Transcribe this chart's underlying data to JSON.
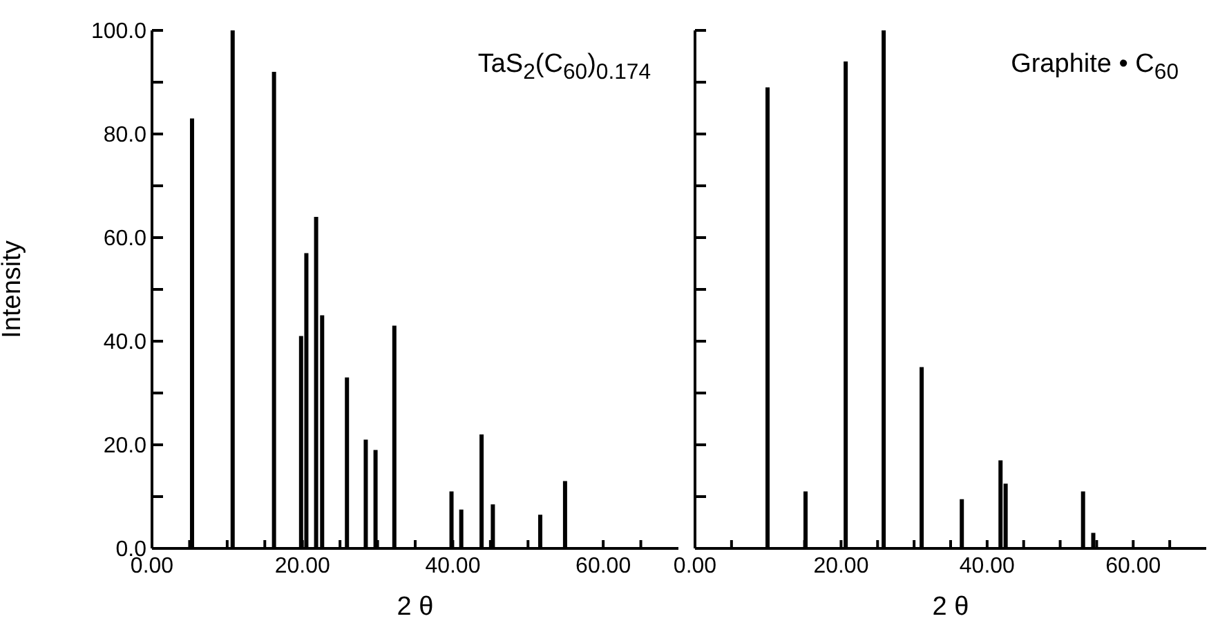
{
  "chart_data": [
    {
      "type": "bar",
      "annotations": [
        "TaS$_{2}$(C$_{60}$)$_{0.174}$"
      ],
      "xlabel": "2 θ",
      "ylabel": "Intensity",
      "color": "#000000",
      "x": [
        5.4,
        10.8,
        16.3,
        19.9,
        20.6,
        21.9,
        22.7,
        26.0,
        28.5,
        29.8,
        32.3,
        39.9,
        41.2,
        43.9,
        45.4,
        51.7,
        55.0
      ],
      "values": [
        83,
        100,
        92,
        41,
        57,
        64,
        45,
        33,
        21,
        19,
        43,
        11,
        7.5,
        22,
        8.5,
        6.5,
        13
      ],
      "xlim": [
        0,
        70
      ],
      "xticks": [
        {
          "value": 0,
          "label": "0.00"
        },
        {
          "value": 5,
          "label": null
        },
        {
          "value": 10,
          "label": null
        },
        {
          "value": 15,
          "label": null
        },
        {
          "value": 20,
          "label": "20.00"
        },
        {
          "value": 25,
          "label": null
        },
        {
          "value": 30,
          "label": null
        },
        {
          "value": 35,
          "label": null
        },
        {
          "value": 40,
          "label": "40.00"
        },
        {
          "value": 45,
          "label": null
        },
        {
          "value": 50,
          "label": null
        },
        {
          "value": 55,
          "label": null
        },
        {
          "value": 60,
          "label": "60.00"
        },
        {
          "value": 65,
          "label": null
        }
      ],
      "ylim": [
        0,
        100
      ],
      "yticks": [
        {
          "value": 0,
          "label": "0.0"
        },
        {
          "value": 10,
          "label": null
        },
        {
          "value": 20,
          "label": "20.0"
        },
        {
          "value": 30,
          "label": null
        },
        {
          "value": 40,
          "label": "40.0"
        },
        {
          "value": 50,
          "label": null
        },
        {
          "value": 60,
          "label": "60.0"
        },
        {
          "value": 70,
          "label": null
        },
        {
          "value": 80,
          "label": "80.0"
        },
        {
          "value": 90,
          "label": null
        },
        {
          "value": 100,
          "label": "100.0"
        }
      ]
    },
    {
      "type": "bar",
      "annotations": [
        "Graphite • C$_{60}$"
      ],
      "xlabel": "2 θ",
      "color": "#000000",
      "tick_labels": "x",
      "x": [
        10.0,
        15.2,
        20.7,
        25.9,
        31.1,
        36.6,
        41.9,
        42.6,
        53.2,
        54.6
      ],
      "values": [
        89,
        11,
        94,
        100,
        35,
        9.5,
        17,
        12.5,
        11,
        3
      ],
      "xlim": [
        0,
        70
      ],
      "xticks": [
        {
          "value": 0,
          "label": "0.00"
        },
        {
          "value": 5,
          "label": null
        },
        {
          "value": 10,
          "label": null
        },
        {
          "value": 15,
          "label": null
        },
        {
          "value": 20,
          "label": "20.00"
        },
        {
          "value": 25,
          "label": null
        },
        {
          "value": 30,
          "label": null
        },
        {
          "value": 35,
          "label": null
        },
        {
          "value": 40,
          "label": "40.00"
        },
        {
          "value": 45,
          "label": null
        },
        {
          "value": 50,
          "label": null
        },
        {
          "value": 55,
          "label": null
        },
        {
          "value": 60,
          "label": "60.00"
        },
        {
          "value": 65,
          "label": null
        }
      ],
      "ylim": [
        0,
        100
      ],
      "yticks": [
        {
          "value": 0,
          "label": null
        },
        {
          "value": 10,
          "label": null
        },
        {
          "value": 20,
          "label": null
        },
        {
          "value": 30,
          "label": null
        },
        {
          "value": 40,
          "label": null
        },
        {
          "value": 50,
          "label": null
        },
        {
          "value": 60,
          "label": null
        },
        {
          "value": 70,
          "label": null
        },
        {
          "value": 80,
          "label": null
        },
        {
          "value": 90,
          "label": null
        },
        {
          "value": 100,
          "label": null
        }
      ]
    }
  ]
}
